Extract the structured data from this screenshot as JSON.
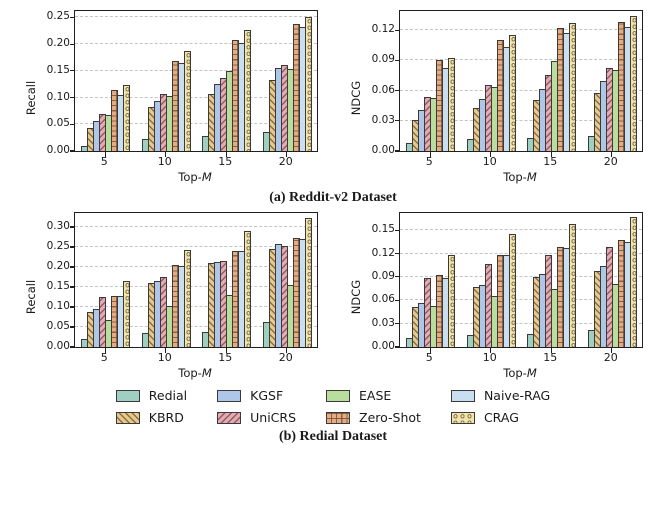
{
  "figure": {
    "captions": {
      "a": "(a) Reddit-v2 Dataset",
      "b": "(b) Redial Dataset"
    },
    "xlabel_prefix": "Top-",
    "xlabel_var": "M"
  },
  "palette": {
    "edge": "#3a3a3a",
    "spine": "#1f1f1f",
    "grid": "#c4c4c4",
    "hatch": "rgba(82,62,44,0.65)"
  },
  "series_styles": [
    {
      "name": "Redial",
      "color": "#9ecfc0",
      "hatch": "none"
    },
    {
      "name": "KBRD",
      "color": "#e9c98a",
      "hatch": "diag"
    },
    {
      "name": "KGSF",
      "color": "#aec6e8",
      "hatch": "none"
    },
    {
      "name": "UniCRS",
      "color": "#e9a8b6",
      "hatch": "bdiag"
    },
    {
      "name": "EASE",
      "color": "#b8dd9d",
      "hatch": "none"
    },
    {
      "name": "Zero-Shot",
      "color": "#e8ab80",
      "hatch": "grid"
    },
    {
      "name": "Naive-RAG",
      "color": "#c9def0",
      "hatch": "none"
    },
    {
      "name": "CRAG",
      "color": "#f2e5aa",
      "hatch": "dots"
    }
  ],
  "legend": {
    "columns": [
      [
        "Redial",
        "KBRD"
      ],
      [
        "KGSF",
        "UniCRS"
      ],
      [
        "EASE",
        "Zero-Shot"
      ],
      [
        "Naive-RAG",
        "CRAG"
      ]
    ]
  },
  "chart_data": [
    {
      "id": "reddit-recall",
      "type": "bar",
      "dataset": "Reddit-v2",
      "ylabel": "Recall",
      "xlabel": "Top-M",
      "categories": [
        "5",
        "10",
        "15",
        "20"
      ],
      "ylim": [
        0,
        0.262
      ],
      "yticks": [
        0.0,
        0.05,
        0.1,
        0.15,
        0.2,
        0.25
      ],
      "series": [
        {
          "name": "Redial",
          "values": [
            0.01,
            0.022,
            0.028,
            0.035
          ]
        },
        {
          "name": "KBRD",
          "values": [
            0.044,
            0.082,
            0.107,
            0.133
          ]
        },
        {
          "name": "KGSF",
          "values": [
            0.057,
            0.093,
            0.126,
            0.155
          ]
        },
        {
          "name": "UniCRS",
          "values": [
            0.07,
            0.106,
            0.137,
            0.161
          ]
        },
        {
          "name": "EASE",
          "values": [
            0.068,
            0.103,
            0.15,
            0.153
          ]
        },
        {
          "name": "Zero-Shot",
          "values": [
            0.114,
            0.168,
            0.207,
            0.237
          ]
        },
        {
          "name": "Naive-RAG",
          "values": [
            0.105,
            0.165,
            0.202,
            0.232
          ]
        },
        {
          "name": "CRAG",
          "values": [
            0.123,
            0.187,
            0.226,
            0.251
          ]
        }
      ]
    },
    {
      "id": "reddit-ndcg",
      "type": "bar",
      "dataset": "Reddit-v2",
      "ylabel": "NDCG",
      "xlabel": "Top-M",
      "categories": [
        "5",
        "10",
        "15",
        "20"
      ],
      "ylim": [
        0,
        0.139
      ],
      "yticks": [
        0.0,
        0.03,
        0.06,
        0.09,
        0.12
      ],
      "series": [
        {
          "name": "Redial",
          "values": [
            0.008,
            0.012,
            0.013,
            0.015
          ]
        },
        {
          "name": "KBRD",
          "values": [
            0.031,
            0.043,
            0.051,
            0.058
          ]
        },
        {
          "name": "KGSF",
          "values": [
            0.041,
            0.052,
            0.062,
            0.07
          ]
        },
        {
          "name": "UniCRS",
          "values": [
            0.054,
            0.066,
            0.075,
            0.082
          ]
        },
        {
          "name": "EASE",
          "values": [
            0.053,
            0.064,
            0.089,
            0.08
          ]
        },
        {
          "name": "Zero-Shot",
          "values": [
            0.09,
            0.11,
            0.122,
            0.128
          ]
        },
        {
          "name": "Naive-RAG",
          "values": [
            0.082,
            0.103,
            0.117,
            0.123
          ]
        },
        {
          "name": "CRAG",
          "values": [
            0.092,
            0.115,
            0.127,
            0.134
          ]
        }
      ]
    },
    {
      "id": "redial-recall",
      "type": "bar",
      "dataset": "Redial",
      "ylabel": "Recall",
      "xlabel": "Top-M",
      "categories": [
        "5",
        "10",
        "15",
        "20"
      ],
      "ylim": [
        0,
        0.335
      ],
      "yticks": [
        0.0,
        0.05,
        0.1,
        0.15,
        0.2,
        0.25,
        0.3
      ],
      "series": [
        {
          "name": "Redial",
          "values": [
            0.019,
            0.034,
            0.038,
            0.063
          ]
        },
        {
          "name": "KBRD",
          "values": [
            0.088,
            0.16,
            0.209,
            0.245
          ]
        },
        {
          "name": "KGSF",
          "values": [
            0.095,
            0.165,
            0.212,
            0.257
          ]
        },
        {
          "name": "UniCRS",
          "values": [
            0.124,
            0.174,
            0.214,
            0.253
          ]
        },
        {
          "name": "EASE",
          "values": [
            0.067,
            0.103,
            0.131,
            0.154
          ]
        },
        {
          "name": "Zero-Shot",
          "values": [
            0.127,
            0.204,
            0.241,
            0.272
          ]
        },
        {
          "name": "Naive-RAG",
          "values": [
            0.127,
            0.203,
            0.24,
            0.27
          ]
        },
        {
          "name": "CRAG",
          "values": [
            0.165,
            0.243,
            0.291,
            0.323
          ]
        }
      ]
    },
    {
      "id": "redial-ndcg",
      "type": "bar",
      "dataset": "Redial",
      "ylabel": "NDCG",
      "xlabel": "Top-M",
      "categories": [
        "5",
        "10",
        "15",
        "20"
      ],
      "ylim": [
        0,
        0.172
      ],
      "yticks": [
        0.0,
        0.03,
        0.06,
        0.09,
        0.12,
        0.15
      ],
      "series": [
        {
          "name": "Redial",
          "values": [
            0.011,
            0.015,
            0.017,
            0.022
          ]
        },
        {
          "name": "KBRD",
          "values": [
            0.052,
            0.077,
            0.09,
            0.098
          ]
        },
        {
          "name": "KGSF",
          "values": [
            0.057,
            0.08,
            0.094,
            0.104
          ]
        },
        {
          "name": "UniCRS",
          "values": [
            0.089,
            0.106,
            0.118,
            0.128
          ]
        },
        {
          "name": "EASE",
          "values": [
            0.053,
            0.065,
            0.074,
            0.081
          ]
        },
        {
          "name": "Zero-Shot",
          "values": [
            0.092,
            0.118,
            0.129,
            0.137
          ]
        },
        {
          "name": "Naive-RAG",
          "values": [
            0.088,
            0.118,
            0.127,
            0.135
          ]
        },
        {
          "name": "CRAG",
          "values": [
            0.118,
            0.145,
            0.158,
            0.167
          ]
        }
      ]
    }
  ]
}
